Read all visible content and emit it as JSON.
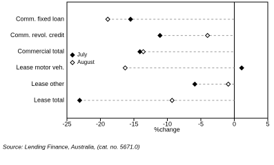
{
  "chart_data": {
    "type": "dot",
    "categories": [
      "Comm. fixed loan",
      "Comm. revol. credit",
      "Commercial total",
      "Lease motor veh.",
      "Lease other",
      "Lease total"
    ],
    "series": [
      {
        "name": "July",
        "color": "#000000",
        "values": [
          -15.5,
          -11.1,
          -14.1,
          1.1,
          -5.9,
          -23.1
        ]
      },
      {
        "name": "August",
        "color": "#000000",
        "values": [
          -18.9,
          -4.0,
          -13.6,
          -16.3,
          -0.9,
          -9.3
        ]
      }
    ],
    "xlabel": "%change",
    "xlim": [
      -25,
      5
    ],
    "xticks": [
      -25,
      -20,
      -15,
      -10,
      -5,
      0,
      5
    ],
    "source": "Source: Lending Finance, Australia, (cat. no. 5671.0)"
  }
}
